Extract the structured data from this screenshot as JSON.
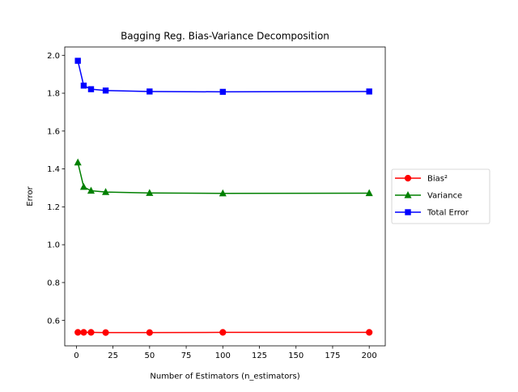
{
  "chart_data": {
    "type": "line",
    "title": "Bagging Reg. Bias-Variance Decomposition",
    "xlabel": "Number of Estimators (n_estimators)",
    "ylabel": "Error",
    "xlim": [
      -7.95,
      210.95
    ],
    "ylim": [
      0.466,
      2.044
    ],
    "xticks": [
      0,
      25,
      50,
      75,
      100,
      125,
      150,
      175,
      200
    ],
    "yticks": [
      0.6,
      0.8,
      1.0,
      1.2,
      1.4,
      1.6,
      1.8,
      2.0
    ],
    "xtick_labels": [
      "0",
      "25",
      "50",
      "75",
      "100",
      "125",
      "150",
      "175",
      "200"
    ],
    "ytick_labels": [
      "0.6",
      "0.8",
      "1.0",
      "1.2",
      "1.4",
      "1.6",
      "1.8",
      "2.0"
    ],
    "grid": false,
    "legend_position": "center-right (outside plot)",
    "x": [
      1,
      5,
      10,
      20,
      50,
      100,
      200
    ],
    "series": [
      {
        "name": "Bias²",
        "color": "#ff0000",
        "marker": "circle",
        "values": [
          0.537,
          0.537,
          0.537,
          0.536,
          0.536,
          0.537,
          0.537
        ]
      },
      {
        "name": "Variance",
        "color": "#008000",
        "marker": "triangle",
        "values": [
          1.434,
          1.305,
          1.285,
          1.278,
          1.273,
          1.271,
          1.272
        ]
      },
      {
        "name": "Total Error",
        "color": "#0000ff",
        "marker": "square",
        "values": [
          1.971,
          1.84,
          1.821,
          1.814,
          1.809,
          1.807,
          1.809
        ]
      }
    ]
  }
}
